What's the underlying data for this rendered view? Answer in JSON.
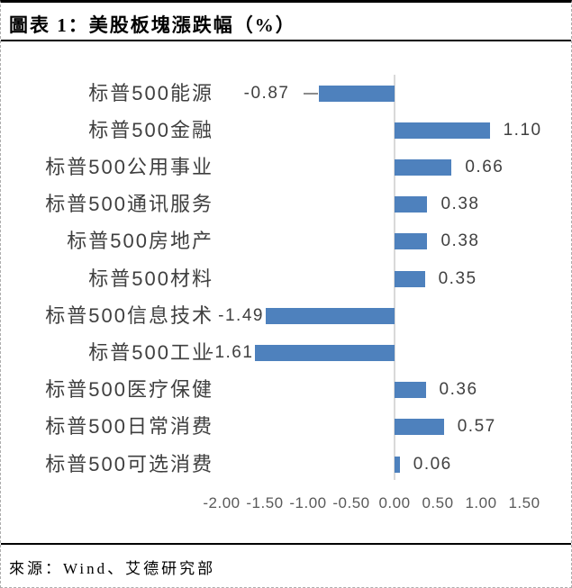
{
  "header": {
    "title": "圖表 1：美股板塊漲跌幅（%）"
  },
  "footer": {
    "source": "來源：Wind、艾德研究部"
  },
  "colors": {
    "bar": "#4E81BD",
    "axis_line": "#D9D9D9",
    "leader_line": "#8C8C8C",
    "category_label": "#3F3F3F",
    "value_label": "#404040",
    "tick_label": "#595959",
    "divider": "#000000"
  },
  "chart_data": {
    "type": "bar",
    "orientation": "horizontal",
    "title": "美股板塊漲跌幅（%）",
    "categories": [
      "标普500能源",
      "标普500金融",
      "标普500公用事业",
      "标普500通讯服务",
      "标普500房地产",
      "标普500材料",
      "标普500信息技术",
      "标普500工业",
      "标普500医疗保健",
      "标普500日常消费",
      "标普500可选消费"
    ],
    "values": [
      -0.87,
      1.1,
      0.66,
      0.38,
      0.38,
      0.35,
      -1.49,
      -1.61,
      0.36,
      0.57,
      0.06
    ],
    "value_labels": [
      "-0.87",
      "1.10",
      "0.66",
      "0.38",
      "0.38",
      "0.35",
      "-1.49",
      "-1.61",
      "0.36",
      "0.57",
      "0.06"
    ],
    "xlabel": "",
    "ylabel": "",
    "xlim": [
      -2.0,
      1.5
    ],
    "x_tick_values": [
      -2.0,
      -1.5,
      -1.0,
      -0.5,
      0.0,
      0.5,
      1.0,
      1.5
    ],
    "x_tick_labels": [
      "-2.00",
      "-1.50",
      "-1.00",
      "-0.50",
      "0.00",
      "0.50",
      "1.00",
      "1.50"
    ],
    "grid": false,
    "legend": false,
    "bar_label_position": "outside-end"
  }
}
